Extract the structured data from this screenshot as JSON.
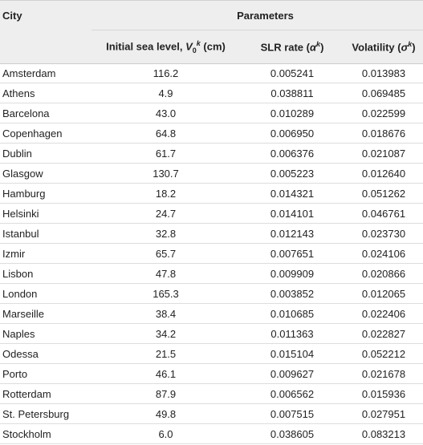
{
  "header": {
    "city_label": "City",
    "parameters_label": "Parameters",
    "col1": {
      "prefix": "Initial sea level, ",
      "symbol": "V",
      "sub": "0",
      "sup": "k",
      "suffix": " (cm)"
    },
    "col2": {
      "prefix": "SLR rate (",
      "symbol": "α",
      "sup": "k",
      "suffix": ")"
    },
    "col3": {
      "prefix": "Volatility (",
      "symbol": "σ",
      "sup": "k",
      "suffix": ")"
    }
  },
  "rows": [
    {
      "city": "Amsterdam",
      "v1": "116.2",
      "v2": "0.005241",
      "v3": "0.013983"
    },
    {
      "city": "Athens",
      "v1": "4.9",
      "v2": "0.038811",
      "v3": "0.069485"
    },
    {
      "city": "Barcelona",
      "v1": "43.0",
      "v2": "0.010289",
      "v3": "0.022599"
    },
    {
      "city": "Copenhagen",
      "v1": "64.8",
      "v2": "0.006950",
      "v3": "0.018676"
    },
    {
      "city": "Dublin",
      "v1": "61.7",
      "v2": "0.006376",
      "v3": "0.021087"
    },
    {
      "city": "Glasgow",
      "v1": "130.7",
      "v2": "0.005223",
      "v3": "0.012640"
    },
    {
      "city": "Hamburg",
      "v1": "18.2",
      "v2": "0.014321",
      "v3": "0.051262"
    },
    {
      "city": "Helsinki",
      "v1": "24.7",
      "v2": "0.014101",
      "v3": "0.046761"
    },
    {
      "city": "Istanbul",
      "v1": "32.8",
      "v2": "0.012143",
      "v3": "0.023730"
    },
    {
      "city": "Izmir",
      "v1": "65.7",
      "v2": "0.007651",
      "v3": "0.024106"
    },
    {
      "city": "Lisbon",
      "v1": "47.8",
      "v2": "0.009909",
      "v3": "0.020866"
    },
    {
      "city": "London",
      "v1": "165.3",
      "v2": "0.003852",
      "v3": "0.012065"
    },
    {
      "city": "Marseille",
      "v1": "38.4",
      "v2": "0.010685",
      "v3": "0.022406"
    },
    {
      "city": "Naples",
      "v1": "34.2",
      "v2": "0.011363",
      "v3": "0.022827"
    },
    {
      "city": "Odessa",
      "v1": "21.5",
      "v2": "0.015104",
      "v3": "0.052212"
    },
    {
      "city": "Porto",
      "v1": "46.1",
      "v2": "0.009627",
      "v3": "0.021678"
    },
    {
      "city": "Rotterdam",
      "v1": "87.9",
      "v2": "0.006562",
      "v3": "0.015936"
    },
    {
      "city": "St. Petersburg",
      "v1": "49.8",
      "v2": "0.007515",
      "v3": "0.027951"
    },
    {
      "city": "Stockholm",
      "v1": "6.0",
      "v2": "0.038605",
      "v3": "0.083213"
    }
  ]
}
